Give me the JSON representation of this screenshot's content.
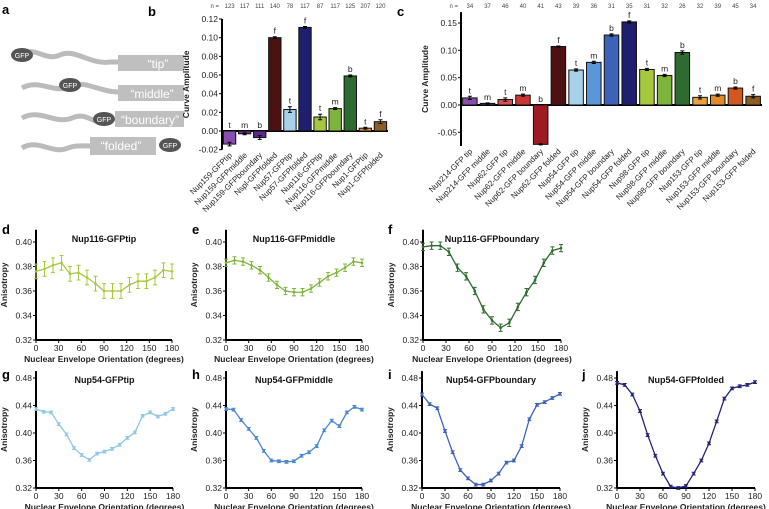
{
  "panel_a": {
    "label": "a",
    "gfp_label": "GFP",
    "constructs": [
      "“tip”",
      "“middle”",
      "“boundary”",
      "“folded”"
    ]
  },
  "chart_data": [
    {
      "id": "b",
      "panel_label": "b",
      "type": "bar",
      "ylabel": "Curve Amplitude",
      "ylim": [
        -0.02,
        0.12
      ],
      "yticks": [
        -0.02,
        0.0,
        0.02,
        0.04,
        0.06,
        0.08,
        0.1,
        0.12
      ],
      "n_prefix": "n =",
      "categories": [
        "Nup159-GFPtip",
        "Nup159-GFPmiddle",
        "Nup159-GFPboundary",
        "Nspl-GFPfolded",
        "Nup57-GFPtip",
        "Nup57-GFPfolded",
        "Nup116-GFPtip",
        "Nup116-GFPmiddle",
        "Nup116-GFPboundary",
        "Nup1-GFPtip",
        "Nup1-GFPfolded"
      ],
      "values": [
        -0.014,
        -0.003,
        -0.007,
        0.1,
        0.023,
        0.111,
        0.015,
        0.024,
        0.059,
        0.003,
        0.01
      ],
      "errors": [
        0.002,
        0.001,
        0.002,
        0.001,
        0.003,
        0.001,
        0.003,
        0.001,
        0.001,
        0.001,
        0.002
      ],
      "n": [
        123,
        117,
        111,
        140,
        78,
        117,
        87,
        117,
        125,
        207,
        120
      ],
      "annotations": [
        "t",
        "m",
        "b",
        "f",
        "t",
        "f",
        "t",
        "m",
        "b",
        "t",
        "f"
      ],
      "colors": [
        "#8a4fae",
        "#6d3596",
        "#5a2a86",
        "#4c1212",
        "#a8d2ea",
        "#1e1f6e",
        "#a6c83c",
        "#7db53a",
        "#2e6b30",
        "#e39030",
        "#8d5b25"
      ]
    },
    {
      "id": "c",
      "panel_label": "c",
      "type": "bar",
      "ylabel": "Curve Amplitude",
      "ylim": [
        -0.075,
        0.17
      ],
      "yticks": [
        -0.05,
        0.0,
        0.05,
        0.1,
        0.15
      ],
      "n_prefix": "n =",
      "categories": [
        "Nup214-GFP tip",
        "Nup214-GFP middle",
        "Nup62-GFP tip",
        "Nup62-GFP middle",
        "Nup62-GFP boundary",
        "Nup62-GFP folded",
        "Nup54-GFP tip",
        "Nup54-GFP middle",
        "Nup54-GFP boundary",
        "Nup54-GFP folded",
        "Nup98-GFP tip",
        "Nup98-GFP middle",
        "Nup98-GFP boundary",
        "Nup153-GFP tip",
        "Nup153-GFP middle",
        "Nup153-GFP boundary",
        "Nup153-GFP folded"
      ],
      "values": [
        0.013,
        0.003,
        0.01,
        0.018,
        -0.072,
        0.107,
        0.064,
        0.078,
        0.128,
        0.152,
        0.065,
        0.054,
        0.096,
        0.014,
        0.018,
        0.031,
        0.016
      ],
      "errors": [
        0.003,
        0.001,
        0.003,
        0.002,
        0.001,
        0.001,
        0.002,
        0.002,
        0.002,
        0.002,
        0.002,
        0.002,
        0.003,
        0.003,
        0.002,
        0.002,
        0.003
      ],
      "n": [
        34,
        37,
        46,
        40,
        41,
        43,
        39,
        36,
        31,
        35,
        31,
        32,
        26,
        32,
        39,
        45,
        34
      ],
      "annotations": [
        "t",
        "m",
        "t",
        "m",
        "b",
        "f",
        "t",
        "m",
        "b",
        "f",
        "t",
        "m",
        "b",
        "t",
        "m",
        "b",
        "f"
      ],
      "colors": [
        "#8a4fae",
        "#5a2a86",
        "#d95050",
        "#cc3535",
        "#9e1b24",
        "#4c1212",
        "#a8d2ea",
        "#5b96d8",
        "#3c63b8",
        "#1e1f6e",
        "#a6c83c",
        "#7db53a",
        "#2e6b30",
        "#e8a040",
        "#e08a28",
        "#d4581e",
        "#8d5b25"
      ]
    },
    {
      "id": "d",
      "panel_label": "d",
      "type": "line",
      "title": "Nup116-GFPtip",
      "xlabel": "Nuclear Envelope Orientation (degrees)",
      "ylabel": "Anisotropy",
      "xlim": [
        0,
        180
      ],
      "ylim": [
        0.32,
        0.41
      ],
      "xticks": [
        0,
        30,
        60,
        90,
        120,
        150,
        180
      ],
      "yticks": [
        0.32,
        0.34,
        0.36,
        0.38,
        0.4
      ],
      "x": [
        0,
        11.25,
        22.5,
        33.75,
        45,
        56.25,
        67.5,
        78.75,
        90,
        101.25,
        112.5,
        123.75,
        135,
        146.25,
        157.5,
        168.75,
        180
      ],
      "y": [
        0.376,
        0.378,
        0.381,
        0.383,
        0.374,
        0.375,
        0.371,
        0.366,
        0.36,
        0.36,
        0.36,
        0.365,
        0.368,
        0.368,
        0.371,
        0.377,
        0.376
      ],
      "error": 0.006,
      "color": "#a6c83c"
    },
    {
      "id": "e",
      "panel_label": "e",
      "type": "line",
      "title": "Nup116-GFPmiddle",
      "xlabel": "Nuclear Envelope Orientation (degrees)",
      "ylabel": "Anisotropy",
      "xlim": [
        0,
        180
      ],
      "ylim": [
        0.32,
        0.41
      ],
      "xticks": [
        0,
        30,
        60,
        90,
        120,
        150,
        180
      ],
      "yticks": [
        0.32,
        0.34,
        0.36,
        0.38,
        0.4
      ],
      "x": [
        0,
        11.25,
        22.5,
        33.75,
        45,
        56.25,
        67.5,
        78.75,
        90,
        101.25,
        112.5,
        123.75,
        135,
        146.25,
        157.5,
        168.75,
        180
      ],
      "y": [
        0.383,
        0.385,
        0.384,
        0.381,
        0.377,
        0.371,
        0.365,
        0.36,
        0.359,
        0.359,
        0.362,
        0.367,
        0.372,
        0.375,
        0.379,
        0.384,
        0.383
      ],
      "error": 0.003,
      "color": "#7db53a"
    },
    {
      "id": "f",
      "panel_label": "f",
      "type": "line",
      "title": "Nup116-GFPboundary",
      "xlabel": "Nuclear Envelope Orientation (degrees)",
      "ylabel": "Anisotropy",
      "xlim": [
        0,
        180
      ],
      "ylim": [
        0.32,
        0.41
      ],
      "xticks": [
        0,
        30,
        60,
        90,
        120,
        150,
        180
      ],
      "yticks": [
        0.32,
        0.34,
        0.36,
        0.38,
        0.4
      ],
      "x": [
        0,
        11.25,
        22.5,
        33.75,
        45,
        56.25,
        67.5,
        78.75,
        90,
        101.25,
        112.5,
        123.75,
        135,
        146.25,
        157.5,
        168.75,
        180
      ],
      "y": [
        0.396,
        0.397,
        0.397,
        0.392,
        0.379,
        0.372,
        0.36,
        0.345,
        0.336,
        0.33,
        0.334,
        0.347,
        0.359,
        0.369,
        0.383,
        0.393,
        0.395
      ],
      "error": 0.003,
      "color": "#2e6b30"
    },
    {
      "id": "g",
      "panel_label": "g",
      "type": "line",
      "title": "Nup54-GFPtip",
      "xlabel": "Nuclear Envelope Orientation (degrees)",
      "ylabel": "Anisotropy",
      "xlim": [
        0,
        180
      ],
      "ylim": [
        0.3,
        0.49
      ],
      "xticks": [
        0,
        30,
        60,
        90,
        120,
        150,
        180
      ],
      "yticks": [
        0.32,
        0.36,
        0.4,
        0.44,
        0.48
      ],
      "x": [
        0,
        10,
        20,
        30,
        40,
        50,
        60,
        70,
        80,
        90,
        100,
        110,
        120,
        130,
        140,
        150,
        160,
        170,
        180
      ],
      "y": [
        0.435,
        0.431,
        0.43,
        0.413,
        0.398,
        0.378,
        0.368,
        0.361,
        0.37,
        0.373,
        0.377,
        0.383,
        0.393,
        0.401,
        0.425,
        0.43,
        0.424,
        0.428,
        0.435
      ],
      "error": 0.002,
      "color": "#8ec8e6"
    },
    {
      "id": "h",
      "panel_label": "h",
      "type": "line",
      "title": "Nup54-GFPmiddle",
      "xlabel": "Nuclear Envelope Orientation (degrees)",
      "ylabel": "Anisotropy",
      "xlim": [
        0,
        180
      ],
      "ylim": [
        0.3,
        0.49
      ],
      "xticks": [
        0,
        30,
        60,
        90,
        120,
        150,
        180
      ],
      "yticks": [
        0.32,
        0.36,
        0.4,
        0.44,
        0.48
      ],
      "x": [
        0,
        10,
        20,
        30,
        40,
        50,
        60,
        70,
        80,
        90,
        100,
        110,
        120,
        130,
        140,
        150,
        160,
        170,
        180
      ],
      "y": [
        0.435,
        0.434,
        0.419,
        0.406,
        0.393,
        0.374,
        0.36,
        0.359,
        0.358,
        0.359,
        0.367,
        0.372,
        0.381,
        0.404,
        0.418,
        0.41,
        0.43,
        0.438,
        0.434
      ],
      "error": 0.002,
      "color": "#4a86d0"
    },
    {
      "id": "i",
      "panel_label": "i",
      "type": "line",
      "title": "Nup54-GFPboundary",
      "xlabel": "Nuclear Envelope Orientation (degrees)",
      "ylabel": "Anisotropy",
      "xlim": [
        0,
        180
      ],
      "ylim": [
        0.3,
        0.49
      ],
      "xticks": [
        0,
        30,
        60,
        90,
        120,
        150,
        180
      ],
      "yticks": [
        0.32,
        0.36,
        0.4,
        0.44,
        0.48
      ],
      "x": [
        0,
        10,
        20,
        30,
        40,
        50,
        60,
        70,
        80,
        90,
        100,
        110,
        120,
        130,
        140,
        150,
        160,
        170,
        180
      ],
      "y": [
        0.456,
        0.442,
        0.436,
        0.403,
        0.372,
        0.346,
        0.334,
        0.325,
        0.325,
        0.331,
        0.341,
        0.357,
        0.36,
        0.381,
        0.42,
        0.441,
        0.445,
        0.451,
        0.457
      ],
      "error": 0.002,
      "color": "#3c63b8"
    },
    {
      "id": "j",
      "panel_label": "j",
      "type": "line",
      "title": "Nup54-GFPfolded",
      "xlabel": "Nuclear Envelope Orientation (degrees)",
      "ylabel": "Anisotropy",
      "xlim": [
        0,
        180
      ],
      "ylim": [
        0.3,
        0.49
      ],
      "xticks": [
        0,
        30,
        60,
        90,
        120,
        150,
        180
      ],
      "yticks": [
        0.32,
        0.36,
        0.4,
        0.44,
        0.48
      ],
      "x": [
        0,
        10,
        20,
        30,
        40,
        50,
        60,
        70,
        80,
        90,
        100,
        110,
        120,
        130,
        140,
        150,
        160,
        170,
        180
      ],
      "y": [
        0.473,
        0.47,
        0.456,
        0.432,
        0.397,
        0.367,
        0.341,
        0.322,
        0.32,
        0.323,
        0.341,
        0.36,
        0.385,
        0.417,
        0.45,
        0.465,
        0.468,
        0.47,
        0.474
      ],
      "error": 0.002,
      "color": "#232375"
    }
  ]
}
